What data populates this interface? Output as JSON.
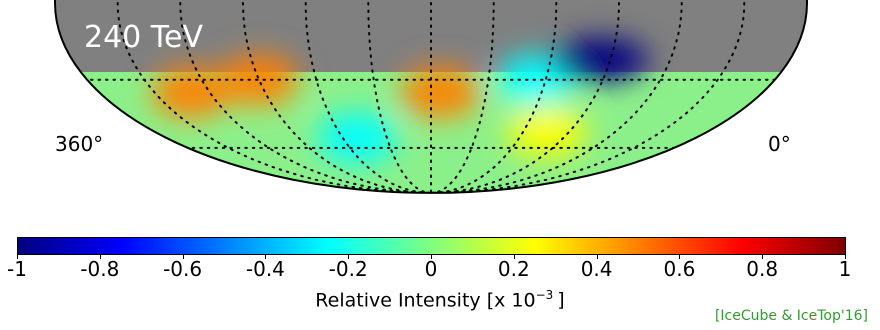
{
  "map": {
    "energy_label": "240 TeV",
    "ra_left_label": "360°",
    "ra_right_label": "0°",
    "projection": "Mollweide, southern sky",
    "masked_region_color": "#808080",
    "hotspots": [
      {
        "kind": "excess",
        "ra_deg": 310,
        "dec_deg": -35,
        "level": 0.45
      },
      {
        "kind": "excess",
        "ra_deg": 270,
        "dec_deg": -30,
        "level": 0.4
      },
      {
        "kind": "deficit",
        "ra_deg": 230,
        "dec_deg": -55,
        "level": -0.35
      },
      {
        "kind": "excess",
        "ra_deg": 175,
        "dec_deg": -35,
        "level": 0.45
      },
      {
        "kind": "deficit",
        "ra_deg": 125,
        "dec_deg": -30,
        "level": -0.35
      },
      {
        "kind": "deficit",
        "ra_deg": 95,
        "dec_deg": -22,
        "level": -0.9
      },
      {
        "kind": "excess",
        "ra_deg": 105,
        "dec_deg": -52,
        "level": 0.3
      }
    ]
  },
  "colorbar": {
    "label_main": "Relative Intensity [x 10",
    "label_exp": "−3",
    "label_end": "]",
    "min": -1,
    "max": 1,
    "ticks": [
      "-1",
      "-0.8",
      "-0.6",
      "-0.4",
      "-0.2",
      "0",
      "0.2",
      "0.4",
      "0.6",
      "0.8",
      "1"
    ],
    "colors": [
      "#00007f",
      "#0000ff",
      "#007fff",
      "#00ffff",
      "#7fff7f",
      "#ffff00",
      "#ff7f00",
      "#ff0000",
      "#7f0000"
    ]
  },
  "credit": "[IceCube & IceTop'16]"
}
